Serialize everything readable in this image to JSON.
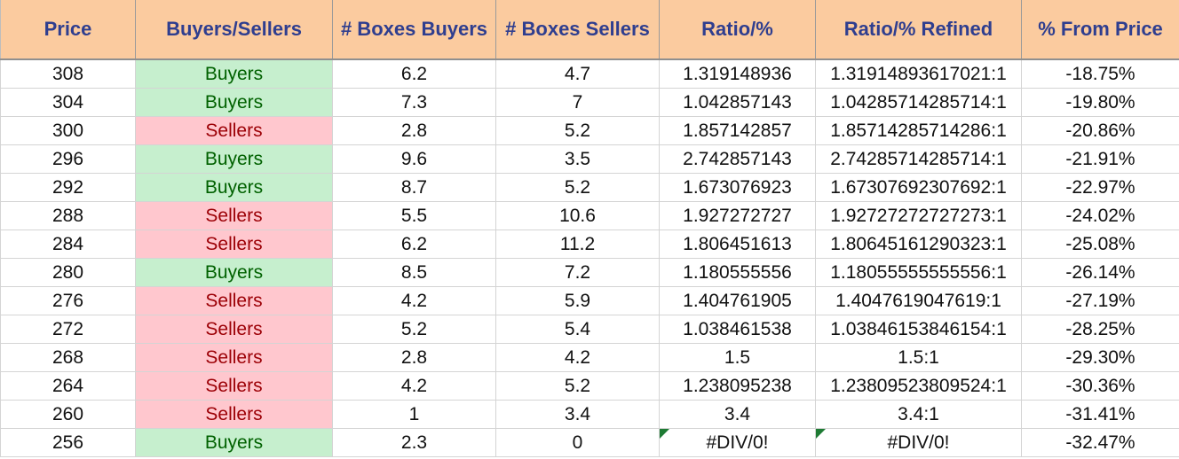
{
  "headers": [
    "Price",
    "Buyers/Sellers",
    "# Boxes Buyers",
    "# Boxes Sellers",
    "Ratio/%",
    "Ratio/% Refined",
    "% From Price"
  ],
  "rows": [
    {
      "price": "308",
      "side": "Buyers",
      "boxes_buyers": "6.2",
      "boxes_sellers": "4.7",
      "ratio": "1.319148936",
      "ratio_refined": "1.31914893617021:1",
      "from_price": "-18.75%"
    },
    {
      "price": "304",
      "side": "Buyers",
      "boxes_buyers": "7.3",
      "boxes_sellers": "7",
      "ratio": "1.042857143",
      "ratio_refined": "1.04285714285714:1",
      "from_price": "-19.80%"
    },
    {
      "price": "300",
      "side": "Sellers",
      "boxes_buyers": "2.8",
      "boxes_sellers": "5.2",
      "ratio": "1.857142857",
      "ratio_refined": "1.85714285714286:1",
      "from_price": "-20.86%"
    },
    {
      "price": "296",
      "side": "Buyers",
      "boxes_buyers": "9.6",
      "boxes_sellers": "3.5",
      "ratio": "2.742857143",
      "ratio_refined": "2.74285714285714:1",
      "from_price": "-21.91%"
    },
    {
      "price": "292",
      "side": "Buyers",
      "boxes_buyers": "8.7",
      "boxes_sellers": "5.2",
      "ratio": "1.673076923",
      "ratio_refined": "1.67307692307692:1",
      "from_price": "-22.97%"
    },
    {
      "price": "288",
      "side": "Sellers",
      "boxes_buyers": "5.5",
      "boxes_sellers": "10.6",
      "ratio": "1.927272727",
      "ratio_refined": "1.92727272727273:1",
      "from_price": "-24.02%"
    },
    {
      "price": "284",
      "side": "Sellers",
      "boxes_buyers": "6.2",
      "boxes_sellers": "11.2",
      "ratio": "1.806451613",
      "ratio_refined": "1.80645161290323:1",
      "from_price": "-25.08%"
    },
    {
      "price": "280",
      "side": "Buyers",
      "boxes_buyers": "8.5",
      "boxes_sellers": "7.2",
      "ratio": "1.180555556",
      "ratio_refined": "1.18055555555556:1",
      "from_price": "-26.14%"
    },
    {
      "price": "276",
      "side": "Sellers",
      "boxes_buyers": "4.2",
      "boxes_sellers": "5.9",
      "ratio": "1.404761905",
      "ratio_refined": "1.4047619047619:1",
      "from_price": "-27.19%"
    },
    {
      "price": "272",
      "side": "Sellers",
      "boxes_buyers": "5.2",
      "boxes_sellers": "5.4",
      "ratio": "1.038461538",
      "ratio_refined": "1.03846153846154:1",
      "from_price": "-28.25%"
    },
    {
      "price": "268",
      "side": "Sellers",
      "boxes_buyers": "2.8",
      "boxes_sellers": "4.2",
      "ratio": "1.5",
      "ratio_refined": "1.5:1",
      "from_price": "-29.30%"
    },
    {
      "price": "264",
      "side": "Sellers",
      "boxes_buyers": "4.2",
      "boxes_sellers": "5.2",
      "ratio": "1.238095238",
      "ratio_refined": "1.23809523809524:1",
      "from_price": "-30.36%"
    },
    {
      "price": "260",
      "side": "Sellers",
      "boxes_buyers": "1",
      "boxes_sellers": "3.4",
      "ratio": "3.4",
      "ratio_refined": "3.4:1",
      "from_price": "-31.41%"
    },
    {
      "price": "256",
      "side": "Buyers",
      "boxes_buyers": "2.3",
      "boxes_sellers": "0",
      "ratio": "#DIV/0!",
      "ratio_refined": "#DIV/0!",
      "from_price": "-32.47%"
    }
  ],
  "colors": {
    "header_bg": "#fbcb9f",
    "header_text": "#2f3e8f",
    "buyers_bg": "#c6efce",
    "buyers_text": "#006100",
    "sellers_bg": "#ffc7ce",
    "sellers_text": "#9c0006",
    "error_flag": "#1e7b34"
  }
}
